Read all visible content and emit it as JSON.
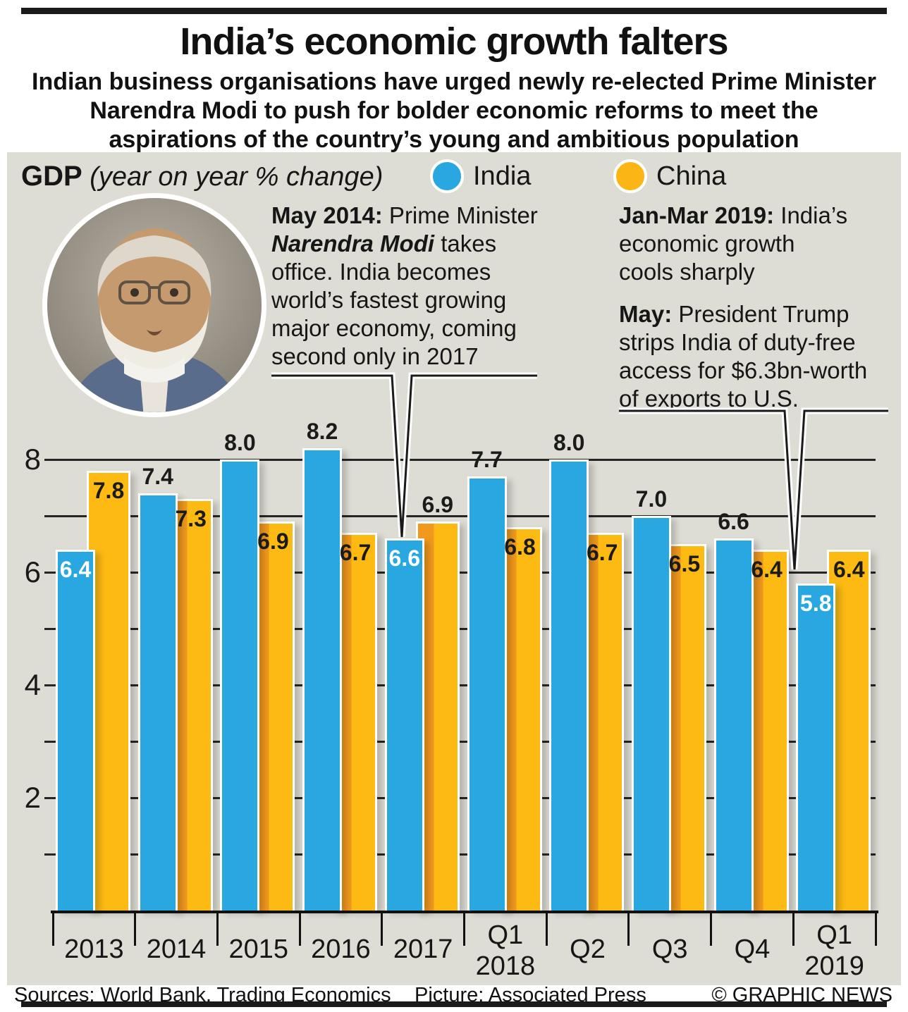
{
  "header": {
    "title": "India’s economic growth falters",
    "subtitle_lines": [
      "Indian business organisations have urged newly re-elected Prime Minister",
      "Narendra Modi to push for bolder economic reforms to meet the",
      "aspirations of the country’s young and ambitious population"
    ]
  },
  "panel": {
    "gdp_label": "GDP",
    "gdp_note": " (year on year % change)",
    "legend": [
      {
        "label": "India",
        "color": "#29A7E1"
      },
      {
        "label": "China",
        "color": "#FBB515"
      }
    ],
    "annotations": {
      "left_bold": "May 2014:",
      "left_normal1": "  Prime Minister\n",
      "left_bold_italic": "Narendra Modi",
      "left_normal2": " takes\noffice. India becomes\nworld’s fastest growing\nmajor economy, coming\nsecond only in 2017",
      "right1_bold": "Jan-Mar 2019:",
      "right1_normal": " India’s\neconomic growth\ncools sharply",
      "right2_bold": "May:",
      "right2_normal": " President Trump\nstrips India of duty-free\naccess for $6.3bn-worth\nof exports to U.S."
    }
  },
  "chart_data": {
    "type": "bar",
    "title": "GDP (year on year % change)",
    "categories": [
      "2013",
      "2014",
      "2015",
      "2016",
      "2017",
      "Q1 2018",
      "Q2 2018",
      "Q3 2018",
      "Q4 2018",
      "Q1 2019"
    ],
    "x_tick_lines": [
      [
        "2013"
      ],
      [
        "2014"
      ],
      [
        "2015"
      ],
      [
        "2016"
      ],
      [
        "2017"
      ],
      [
        "Q1",
        "2018"
      ],
      [
        "Q2"
      ],
      [
        "Q3"
      ],
      [
        "Q4"
      ],
      [
        "Q1",
        "2019"
      ]
    ],
    "series": [
      {
        "name": "India",
        "color": "#29A7E1",
        "values": [
          6.4,
          7.4,
          8.0,
          8.2,
          6.6,
          7.7,
          8.0,
          7.0,
          6.6,
          5.8
        ],
        "label_pos": [
          "inside",
          "above",
          "above",
          "above",
          "inside",
          "above",
          "above",
          "above",
          "above",
          "inside"
        ],
        "label_color_inside": "#ffffff"
      },
      {
        "name": "China",
        "color_left": "#F2991D",
        "color_right": "#FDBA12",
        "values": [
          7.8,
          7.3,
          6.9,
          6.7,
          6.9,
          6.8,
          6.7,
          6.5,
          6.4,
          6.4
        ],
        "label_pos": [
          "inside",
          "inside",
          "inside",
          "inside",
          "above",
          "inside",
          "inside",
          "inside",
          "inside",
          "inside"
        ],
        "two_tone": [
          false,
          true,
          true,
          true,
          true,
          true,
          true,
          true,
          true,
          false
        ],
        "label_color_inside": "#1b1b1b"
      }
    ],
    "ylim": [
      0,
      8.6
    ],
    "y_gridline_step": 1,
    "y_labeled_ticks": [
      2,
      4,
      6,
      8
    ],
    "grid": true,
    "legend_position": "top"
  },
  "footer": {
    "sources": "Sources: World Bank, Trading Economics",
    "picture": "Picture: Associated Press",
    "credit": "© GRAPHIC NEWS"
  }
}
